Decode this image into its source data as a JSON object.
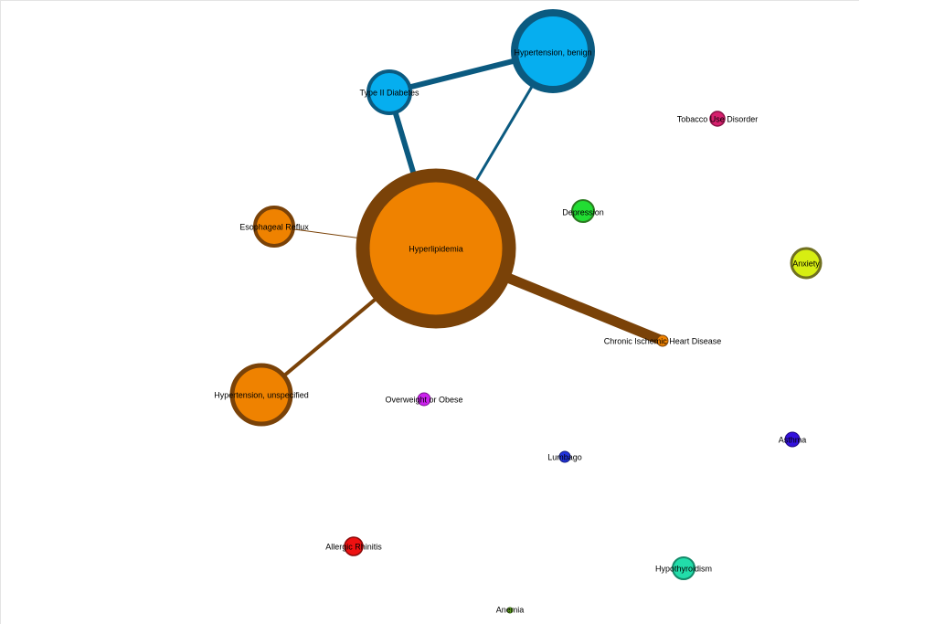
{
  "nodes": [
    {
      "label": "Hypertension, benign"
    },
    {
      "label": "Type II Diabetes"
    },
    {
      "label": "Hyperlipidemia"
    },
    {
      "label": "Esophageal Reflux"
    },
    {
      "label": "Hypertension, unspecified"
    },
    {
      "label": "Chronic Ischemic Heart Disease"
    },
    {
      "label": "Tobacco Use Disorder"
    },
    {
      "label": "Depression"
    },
    {
      "label": "Anxiety"
    },
    {
      "label": "Overweight or Obese"
    },
    {
      "label": "Asthma"
    },
    {
      "label": "Lumbago"
    },
    {
      "label": "Allergic Rhinitis"
    },
    {
      "label": "Hypothyroidism"
    },
    {
      "label": "Anemia"
    }
  ]
}
